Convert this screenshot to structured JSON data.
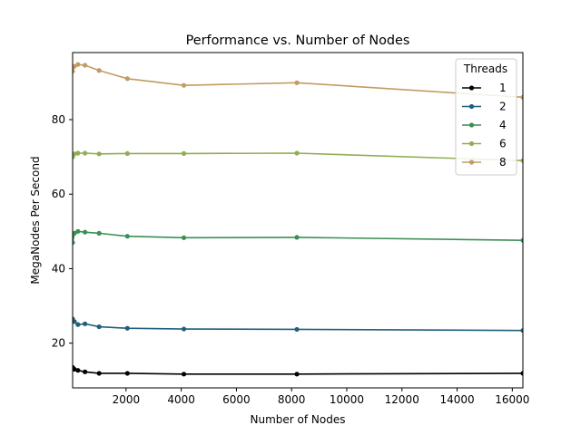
{
  "chart_data": {
    "type": "line",
    "title": "Performance vs. Number of Nodes",
    "xlabel": "Number of Nodes",
    "ylabel": "MegaNodes Per Second",
    "xlim": [
      64,
      16384
    ],
    "ylim": [
      8,
      98
    ],
    "xticks": [
      2000,
      4000,
      6000,
      8000,
      10000,
      12000,
      14000,
      16000
    ],
    "yticks": [
      20,
      40,
      60,
      80
    ],
    "grid": false,
    "legend": {
      "title": "Threads",
      "placement": "top-right"
    },
    "x": [
      64,
      128,
      256,
      512,
      1024,
      2048,
      4096,
      8192,
      16384
    ],
    "series": [
      {
        "name": "1",
        "color": "#000000",
        "values": [
          13.5,
          13.0,
          12.7,
          12.3,
          11.9,
          11.9,
          11.7,
          11.7,
          11.9
        ]
      },
      {
        "name": "2",
        "color": "#1f5f7a",
        "values": [
          26.5,
          25.8,
          25.0,
          25.2,
          24.4,
          24.0,
          23.8,
          23.7,
          23.4
        ]
      },
      {
        "name": "4",
        "color": "#3a8f55",
        "values": [
          47.0,
          49.5,
          50.0,
          49.8,
          49.5,
          48.7,
          48.3,
          48.4,
          47.6
        ]
      },
      {
        "name": "6",
        "color": "#8fae50",
        "values": [
          70.0,
          70.8,
          71.0,
          71.0,
          70.8,
          70.9,
          70.9,
          71.0,
          69.0
        ]
      },
      {
        "name": "8",
        "color": "#c29b62",
        "values": [
          93.0,
          94.3,
          94.8,
          94.6,
          93.2,
          91.0,
          89.2,
          89.9,
          86.0
        ]
      }
    ]
  }
}
